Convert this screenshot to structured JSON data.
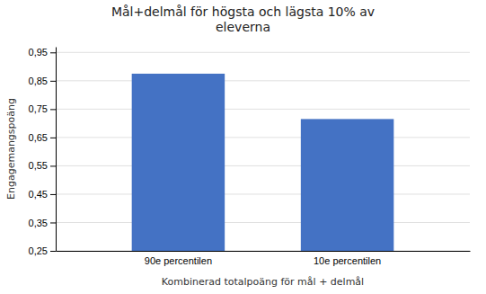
{
  "chart_data": {
    "type": "bar",
    "title": "Mål+delmål för högsta och lägsta 10% av\neleverna",
    "xlabel": "Kombinerad totalpoäng för mål + delmål",
    "ylabel": "Engagemangspoäng",
    "categories": [
      "90e percentilen",
      "10e percentilen"
    ],
    "values": [
      0.875,
      0.715
    ],
    "color": "#4472C4",
    "ylim": [
      0.25,
      0.97
    ],
    "yticks": [
      {
        "value": 0.25,
        "label": "0,25"
      },
      {
        "value": 0.35,
        "label": "0,35"
      },
      {
        "value": 0.45,
        "label": "0,45"
      },
      {
        "value": 0.55,
        "label": "0,55"
      },
      {
        "value": 0.65,
        "label": "0,65"
      },
      {
        "value": 0.75,
        "label": "0,75"
      },
      {
        "value": 0.85,
        "label": "0,85"
      },
      {
        "value": 0.95,
        "label": "0,95"
      }
    ],
    "grid": true
  }
}
